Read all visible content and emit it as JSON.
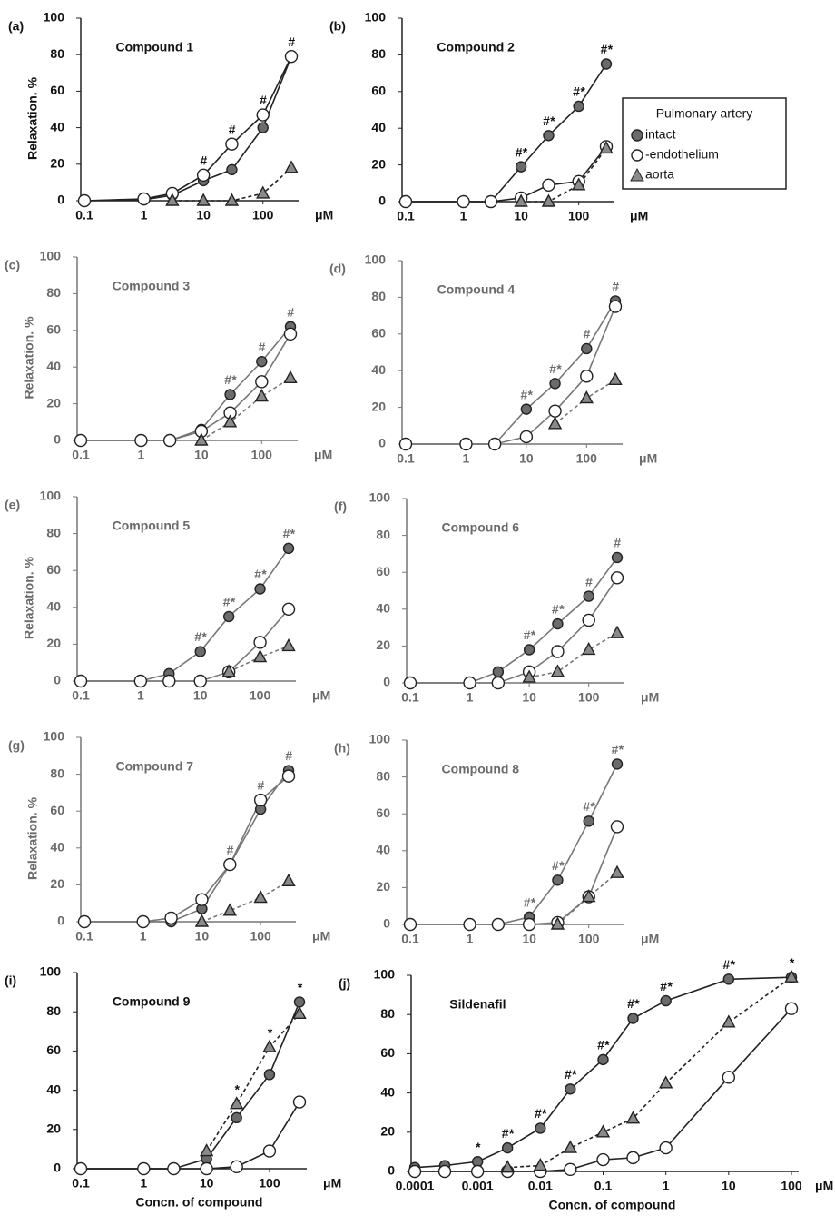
{
  "chart_data": [
    {
      "type": "line",
      "panel": "(a)",
      "title": "Compound 1",
      "ylabel": "Relaxation. %",
      "unit": "μM",
      "log_x": true,
      "x": [
        0.1,
        1,
        3,
        10,
        30,
        100,
        300
      ],
      "xlim": [
        0.1,
        300
      ],
      "xticks": [
        0.1,
        1,
        10,
        100
      ],
      "ylim": [
        0,
        100
      ],
      "yticks": [
        0,
        20,
        40,
        60,
        80,
        100
      ],
      "series": [
        {
          "marker": "circle",
          "color": "#6b6b6b",
          "values": [
            0,
            0.5,
            3,
            11,
            17,
            40,
            79
          ]
        },
        {
          "marker": "circle",
          "color": "#ffffff",
          "values": [
            0,
            1,
            4,
            14,
            31,
            47,
            79
          ]
        },
        {
          "marker": "triangle",
          "color": "#8a8a8a",
          "dashed": true,
          "values": [
            null,
            null,
            0,
            0,
            0,
            4,
            18
          ]
        }
      ],
      "annotations": [
        null,
        null,
        null,
        "#",
        "#",
        "#",
        "#"
      ]
    },
    {
      "type": "line",
      "panel": "(b)",
      "title": "Compound 2",
      "unit": "μM",
      "log_x": true,
      "x": [
        0.1,
        1,
        3,
        10,
        30,
        100,
        300
      ],
      "xlim": [
        0.1,
        300
      ],
      "xticks": [
        0.1,
        1,
        10,
        100
      ],
      "ylim": [
        0,
        100
      ],
      "yticks": [
        0,
        20,
        40,
        60,
        80,
        100
      ],
      "legend_title": "Pulmonary artery",
      "series": [
        {
          "name": "intact",
          "marker": "circle",
          "color": "#6b6b6b",
          "values": [
            0,
            0,
            0,
            19,
            36,
            52,
            75
          ]
        },
        {
          "name": "-endothelium",
          "marker": "circle",
          "color": "#ffffff",
          "values": [
            0,
            0,
            0,
            2,
            9,
            11,
            30
          ]
        },
        {
          "name": "aorta",
          "marker": "triangle",
          "color": "#8a8a8a",
          "dashed": true,
          "values": [
            null,
            null,
            null,
            0,
            0,
            9,
            29
          ]
        }
      ],
      "annotations": [
        null,
        null,
        null,
        "#*",
        "#*",
        "#*",
        "#*"
      ]
    },
    {
      "type": "line",
      "panel": "(c)",
      "title": "Compound 3",
      "ylabel": "Relaxation. %",
      "unit": "μM",
      "log_x": true,
      "x": [
        0.1,
        1,
        3,
        10,
        30,
        100,
        300
      ],
      "xlim": [
        0.1,
        300
      ],
      "xticks": [
        0.1,
        1,
        10,
        100
      ],
      "ylim": [
        0,
        100
      ],
      "yticks": [
        0,
        20,
        40,
        60,
        80,
        100
      ],
      "series": [
        {
          "marker": "circle",
          "color": "#6b6b6b",
          "values": [
            0,
            0,
            0,
            6,
            25,
            43,
            62
          ]
        },
        {
          "marker": "circle",
          "color": "#ffffff",
          "values": [
            0,
            0,
            0,
            5,
            15,
            32,
            58
          ]
        },
        {
          "marker": "triangle",
          "color": "#8a8a8a",
          "dashed": true,
          "values": [
            null,
            null,
            null,
            0,
            10,
            24,
            34
          ]
        }
      ],
      "annotations": [
        null,
        null,
        null,
        null,
        "#*",
        "#",
        "#"
      ]
    },
    {
      "type": "line",
      "panel": "(d)",
      "title": "Compound 4",
      "unit": "μM",
      "log_x": true,
      "x": [
        0.1,
        1,
        3,
        10,
        30,
        100,
        300
      ],
      "xlim": [
        0.1,
        300
      ],
      "xticks": [
        0.1,
        1,
        10,
        100
      ],
      "ylim": [
        0,
        100
      ],
      "yticks": [
        0,
        20,
        40,
        60,
        80,
        100
      ],
      "series": [
        {
          "marker": "circle",
          "color": "#6b6b6b",
          "values": [
            0,
            0,
            0,
            19,
            33,
            52,
            78
          ]
        },
        {
          "marker": "circle",
          "color": "#ffffff",
          "values": [
            0,
            0,
            0,
            4,
            18,
            37,
            75
          ]
        },
        {
          "marker": "triangle",
          "color": "#8a8a8a",
          "dashed": true,
          "values": [
            null,
            null,
            null,
            null,
            11,
            25,
            35
          ]
        }
      ],
      "annotations": [
        null,
        null,
        null,
        "#*",
        "#*",
        "#",
        "#"
      ]
    },
    {
      "type": "line",
      "panel": "(e)",
      "title": "Compound 5",
      "ylabel": "Relaxation. %",
      "unit": "μM",
      "log_x": true,
      "x": [
        0.1,
        1,
        3,
        10,
        30,
        100,
        300
      ],
      "xlim": [
        0.1,
        300
      ],
      "xticks": [
        0.1,
        1,
        10,
        100
      ],
      "ylim": [
        0,
        100
      ],
      "yticks": [
        0,
        20,
        40,
        60,
        80,
        100
      ],
      "series": [
        {
          "marker": "circle",
          "color": "#6b6b6b",
          "values": [
            0,
            0,
            4,
            16,
            35,
            50,
            72
          ]
        },
        {
          "marker": "circle",
          "color": "#ffffff",
          "values": [
            0,
            0,
            0,
            0,
            5,
            21,
            39
          ]
        },
        {
          "marker": "triangle",
          "color": "#8a8a8a",
          "dashed": true,
          "values": [
            null,
            null,
            null,
            null,
            5,
            13,
            19
          ]
        }
      ],
      "annotations": [
        null,
        null,
        null,
        "#*",
        "#*",
        "#*",
        "#*"
      ]
    },
    {
      "type": "line",
      "panel": "(f)",
      "title": "Compound 6",
      "unit": "μM",
      "log_x": true,
      "x": [
        0.1,
        1,
        3,
        10,
        30,
        100,
        300
      ],
      "xlim": [
        0.1,
        300
      ],
      "xticks": [
        0.1,
        1,
        10,
        100
      ],
      "ylim": [
        0,
        100
      ],
      "yticks": [
        0,
        20,
        40,
        60,
        80,
        100
      ],
      "series": [
        {
          "marker": "circle",
          "color": "#6b6b6b",
          "values": [
            0,
            0,
            6,
            18,
            32,
            47,
            68
          ]
        },
        {
          "marker": "circle",
          "color": "#ffffff",
          "values": [
            0,
            0,
            0,
            6,
            17,
            34,
            57
          ]
        },
        {
          "marker": "triangle",
          "color": "#8a8a8a",
          "dashed": true,
          "values": [
            null,
            null,
            null,
            3,
            6,
            18,
            27
          ]
        }
      ],
      "annotations": [
        null,
        null,
        null,
        "#*",
        "#*",
        "#",
        "#"
      ]
    },
    {
      "type": "line",
      "panel": "(g)",
      "title": "Compound 7",
      "ylabel": "Relaxation. %",
      "unit": "μM",
      "log_x": true,
      "x": [
        0.1,
        1,
        3,
        10,
        30,
        100,
        300
      ],
      "xlim": [
        0.1,
        300
      ],
      "xticks": [
        0.1,
        1,
        10,
        100
      ],
      "ylim": [
        0,
        100
      ],
      "yticks": [
        0,
        20,
        40,
        60,
        80,
        100
      ],
      "series": [
        {
          "marker": "circle",
          "color": "#6b6b6b",
          "values": [
            0,
            0,
            0,
            7,
            31,
            61,
            82
          ]
        },
        {
          "marker": "circle",
          "color": "#ffffff",
          "values": [
            0,
            0,
            2,
            12,
            31,
            66,
            79
          ]
        },
        {
          "marker": "triangle",
          "color": "#8a8a8a",
          "dashed": true,
          "values": [
            null,
            null,
            null,
            0,
            6,
            13,
            22
          ]
        }
      ],
      "annotations": [
        null,
        null,
        null,
        null,
        "#",
        "#",
        "#"
      ]
    },
    {
      "type": "line",
      "panel": "(h)",
      "title": "Compound 8",
      "unit": "μM",
      "log_x": true,
      "x": [
        0.1,
        1,
        3,
        10,
        30,
        100,
        300
      ],
      "xlim": [
        0.1,
        300
      ],
      "xticks": [
        0.1,
        1,
        10,
        100
      ],
      "ylim": [
        0,
        100
      ],
      "yticks": [
        0,
        20,
        40,
        60,
        80,
        100
      ],
      "series": [
        {
          "marker": "circle",
          "color": "#6b6b6b",
          "values": [
            0,
            0,
            0,
            4,
            24,
            56,
            87
          ]
        },
        {
          "marker": "circle",
          "color": "#ffffff",
          "values": [
            0,
            0,
            0,
            0,
            1,
            15,
            53
          ]
        },
        {
          "marker": "triangle",
          "color": "#8a8a8a",
          "dashed": true,
          "values": [
            null,
            null,
            null,
            null,
            0,
            15,
            28
          ]
        }
      ],
      "annotations": [
        null,
        null,
        null,
        "#*",
        "#*",
        "#*",
        "#*"
      ]
    },
    {
      "type": "line",
      "panel": "(i)",
      "title": "Compound 9",
      "xlabel": "Concn. of compound",
      "unit": "μM",
      "log_x": true,
      "x": [
        0.1,
        1,
        3,
        10,
        30,
        100,
        300
      ],
      "xlim": [
        0.1,
        300
      ],
      "xticks": [
        0.1,
        1,
        10,
        100
      ],
      "ylim": [
        0,
        100
      ],
      "yticks": [
        0,
        20,
        40,
        60,
        80,
        100
      ],
      "series": [
        {
          "marker": "circle",
          "color": "#6b6b6b",
          "values": [
            0,
            0,
            0,
            5,
            26,
            48,
            85
          ]
        },
        {
          "marker": "circle",
          "color": "#ffffff",
          "values": [
            0,
            0,
            0,
            0,
            1,
            9,
            34
          ]
        },
        {
          "marker": "triangle",
          "color": "#8a8a8a",
          "dashed": true,
          "values": [
            null,
            null,
            null,
            9,
            33,
            62,
            79
          ]
        }
      ],
      "annotations": [
        null,
        null,
        null,
        null,
        "*",
        "*",
        "*"
      ]
    },
    {
      "type": "line",
      "panel": "(j)",
      "title": "Sildenafil",
      "xlabel": "Concn. of compound",
      "unit": "μM",
      "log_x": true,
      "x": [
        0.0001,
        0.0003,
        0.001,
        0.003,
        0.01,
        0.03,
        0.1,
        0.3,
        1,
        10,
        100
      ],
      "xlim": [
        0.0001,
        100
      ],
      "xticks": [
        0.0001,
        0.001,
        0.01,
        0.1,
        1,
        10,
        100
      ],
      "ylim": [
        0,
        100
      ],
      "yticks": [
        0,
        20,
        40,
        60,
        80,
        100
      ],
      "series": [
        {
          "marker": "circle",
          "color": "#6b6b6b",
          "values": [
            2,
            3,
            5,
            12,
            22,
            42,
            57,
            78,
            87,
            98,
            99
          ]
        },
        {
          "marker": "circle",
          "color": "#ffffff",
          "values": [
            0,
            0,
            0,
            0,
            0,
            1,
            6,
            7,
            12,
            48,
            83
          ]
        },
        {
          "marker": "triangle",
          "color": "#8a8a8a",
          "dashed": true,
          "values": [
            null,
            null,
            null,
            2,
            3,
            12,
            20,
            27,
            45,
            76,
            99
          ]
        }
      ],
      "annotations": [
        null,
        null,
        "*",
        "#*",
        "#*",
        "#*",
        "#*",
        "#*",
        "#*",
        "#*",
        "*"
      ]
    }
  ]
}
